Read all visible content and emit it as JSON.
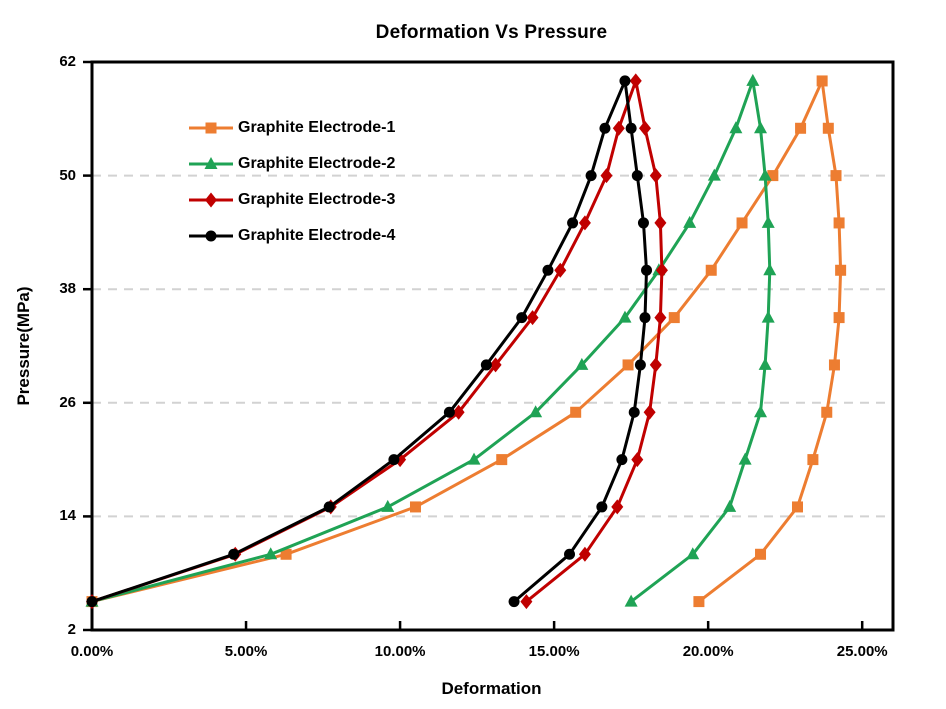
{
  "title": "Deformation Vs Pressure",
  "chart_data": {
    "type": "line",
    "title": "Deformation Vs Pressure",
    "xlabel": "Deformation",
    "ylabel": "Pressure(MPa)",
    "xlim": [
      0,
      26
    ],
    "ylim": [
      2,
      62
    ],
    "x_ticks": [
      0,
      5,
      10,
      15,
      20,
      25
    ],
    "x_tick_labels": [
      "0.00%",
      "5.00%",
      "10.00%",
      "15.00%",
      "20.00%",
      "25.00%"
    ],
    "y_ticks": [
      2,
      14,
      26,
      38,
      50,
      62
    ],
    "y_tick_labels": [
      "2",
      "14",
      "26",
      "38",
      "50",
      "62"
    ],
    "grid": "horizontal-dashed",
    "gridline_values": [
      14,
      26,
      38,
      50
    ],
    "legend_position": "upper-left-inside",
    "colors": {
      "grid": "#D2D2D2",
      "axis": "#000000",
      "background": "#FFFFFF"
    },
    "series": [
      {
        "name": "Graphite Electrode-1",
        "color": "#ED7D31",
        "marker": "square",
        "pressure_MPa": [
          5,
          10,
          15,
          20,
          25,
          30,
          35,
          40,
          45,
          50,
          55,
          60,
          55,
          50,
          45,
          40,
          35,
          30,
          25,
          20,
          15,
          10,
          5
        ],
        "deformation_pct": [
          0,
          6.3,
          10.5,
          13.3,
          15.7,
          17.4,
          18.9,
          20.1,
          21.1,
          22.1,
          23.0,
          23.7,
          23.9,
          24.15,
          24.25,
          24.3,
          24.25,
          24.1,
          23.85,
          23.4,
          22.9,
          21.7,
          19.7
        ]
      },
      {
        "name": "Graphite Electrode-2",
        "color": "#1FA355",
        "marker": "triangle",
        "pressure_MPa": [
          5,
          10,
          15,
          20,
          25,
          30,
          35,
          40,
          45,
          50,
          55,
          60,
          55,
          50,
          45,
          40,
          35,
          30,
          25,
          20,
          15,
          10,
          5
        ],
        "deformation_pct": [
          0,
          5.8,
          9.6,
          12.4,
          14.4,
          15.9,
          17.3,
          18.4,
          19.4,
          20.2,
          20.9,
          21.45,
          21.7,
          21.85,
          21.95,
          22.0,
          21.95,
          21.85,
          21.7,
          21.2,
          20.7,
          19.5,
          17.5
        ]
      },
      {
        "name": "Graphite Electrode-3",
        "color": "#C00000",
        "marker": "diamond",
        "pressure_MPa": [
          5,
          10,
          15,
          20,
          25,
          30,
          35,
          40,
          45,
          50,
          55,
          60,
          55,
          50,
          45,
          40,
          35,
          30,
          25,
          20,
          15,
          10,
          5
        ],
        "deformation_pct": [
          0,
          4.65,
          7.75,
          10.0,
          11.9,
          13.1,
          14.3,
          15.2,
          16.0,
          16.7,
          17.1,
          17.65,
          17.95,
          18.3,
          18.45,
          18.5,
          18.45,
          18.3,
          18.1,
          17.7,
          17.05,
          16.0,
          14.1
        ]
      },
      {
        "name": "Graphite Electrode-4",
        "color": "#000000",
        "marker": "circle",
        "pressure_MPa": [
          5,
          10,
          15,
          20,
          25,
          30,
          35,
          40,
          45,
          50,
          55,
          60,
          55,
          50,
          45,
          40,
          35,
          30,
          25,
          20,
          15,
          10,
          5
        ],
        "deformation_pct": [
          0,
          4.6,
          7.7,
          9.8,
          11.6,
          12.8,
          13.95,
          14.8,
          15.6,
          16.2,
          16.65,
          17.3,
          17.5,
          17.7,
          17.9,
          18.0,
          17.95,
          17.8,
          17.6,
          17.2,
          16.55,
          15.5,
          13.7
        ]
      }
    ]
  }
}
